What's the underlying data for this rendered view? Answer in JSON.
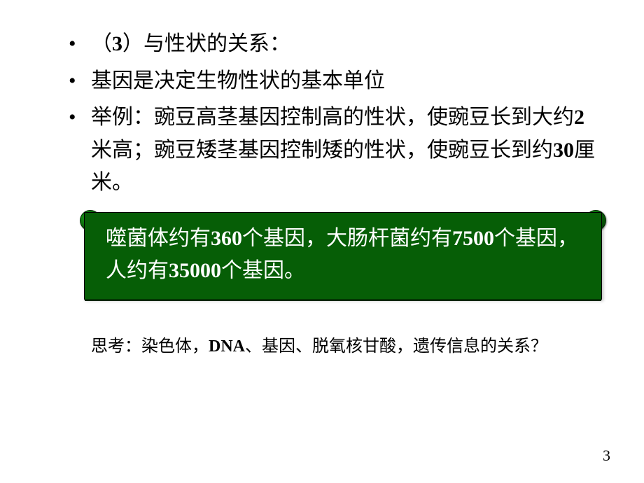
{
  "bullets": {
    "b1_prefix": "（",
    "b1_num": "3",
    "b1_suffix": "）与性状的关系：",
    "b2": "基因是决定生物性状的基本单位",
    "b3_part1": "举例：豌豆高茎基因控制高的性状，使豌豆长到大约",
    "b3_num1": "2",
    "b3_part2": "米高；豌豆矮茎基因控制矮的性状，使豌豆长到约",
    "b3_num2": "30",
    "b3_part3": "厘米。"
  },
  "callout": {
    "p1": "噬菌体约有",
    "n1": "360",
    "p2": "个基因，大肠杆菌约有",
    "n2": "7500",
    "p3": "个基因，人约有",
    "n3": "35000",
    "p4": "个基因。",
    "bg_color": "#065e06",
    "text_color": "#ffffff"
  },
  "think": {
    "label": "思考：染色体，",
    "dna": "DNA",
    "rest": "、基因、脱氧核甘酸，遗传信息的关系？"
  },
  "page_number": "3",
  "colors": {
    "page_bg": "#ffffff",
    "text": "#000000"
  },
  "fontsizes": {
    "bullet": 30,
    "callout": 30,
    "think": 24,
    "page_num": 22
  }
}
